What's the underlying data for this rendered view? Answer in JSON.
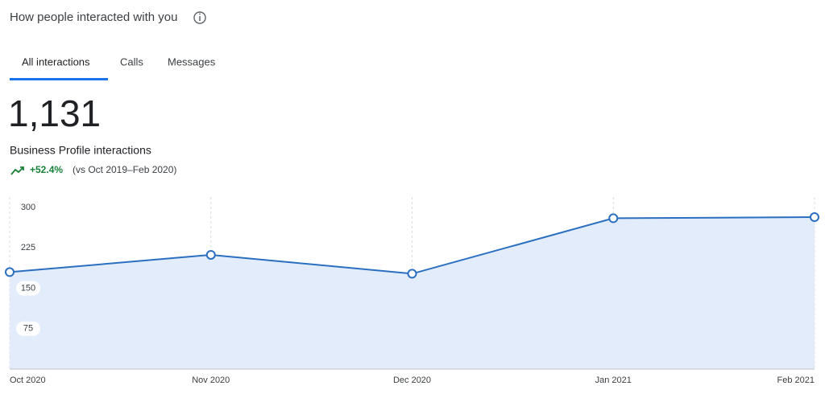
{
  "header": {
    "title": "How people interacted with you"
  },
  "tabs": [
    "All interactions",
    "Calls",
    "Messages"
  ],
  "summary": {
    "total": "1,131",
    "label": "Business Profile interactions",
    "change": "+52.4%",
    "comparison": "(vs Oct 2019–Feb 2020)"
  },
  "chart_data": {
    "type": "area",
    "categories": [
      "Oct 2020",
      "Nov 2020",
      "Dec 2020",
      "Jan 2021",
      "Feb 2021"
    ],
    "values": [
      180,
      212,
      177,
      280,
      282
    ],
    "color": "#2a6fc0",
    "fill": "#e3ecfb",
    "ylim": [
      0,
      300
    ],
    "yticks": [
      75,
      150,
      225,
      300
    ],
    "grid": true
  }
}
